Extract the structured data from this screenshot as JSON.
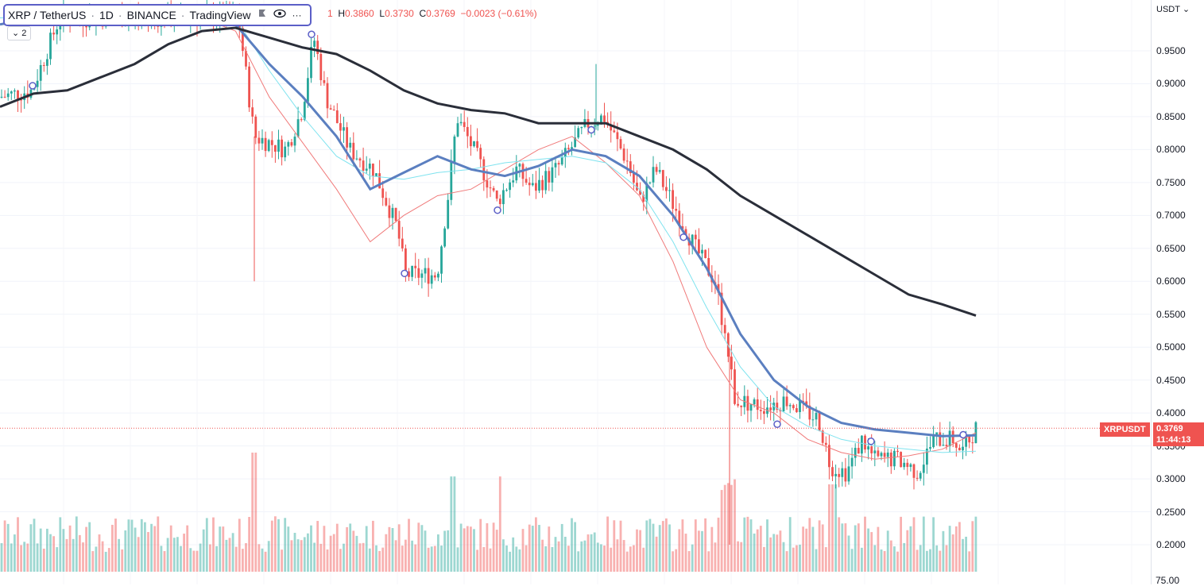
{
  "legend": {
    "symbol": "XRP / TetherUS",
    "interval": "1D",
    "exchange": "BINANCE",
    "source": "TradingView",
    "collapse_count": "2"
  },
  "ohlc": {
    "open_partial": "1",
    "h_label": "H",
    "h": "0.3860",
    "l_label": "L",
    "l": "0.3730",
    "c_label": "C",
    "c": "0.3769",
    "change": "−0.0023 (−0.61%)"
  },
  "price_axis": {
    "currency": "USDT",
    "ticks": [
      "0.9500",
      "0.9000",
      "0.8500",
      "0.8000",
      "0.7500",
      "0.7000",
      "0.6500",
      "0.6000",
      "0.5500",
      "0.5000",
      "0.4500",
      "0.4000",
      "0.3500",
      "0.3000",
      "0.2500",
      "0.2000"
    ],
    "bottom_label": "75.00"
  },
  "last_price": {
    "symbol": "XRPUSDT",
    "price": "0.3769",
    "countdown": "11:44:13"
  },
  "colors": {
    "up": "#26a69a",
    "down": "#ef5350",
    "ma_long": "#2a2e39",
    "ma_mid": "#5b7fc0",
    "ma_cyan": "#7fe3ef",
    "ma_short": "#f07a7a"
  },
  "chart_data": {
    "type": "candlestick",
    "ylim": [
      0.18,
      1.0
    ],
    "price_scale_ticks": [
      0.95,
      0.9,
      0.85,
      0.8,
      0.75,
      0.7,
      0.65,
      0.6,
      0.55,
      0.5,
      0.45,
      0.4,
      0.35,
      0.3,
      0.25,
      0.2
    ],
    "last_close": 0.3769,
    "ma_long_points": [
      0.865,
      0.885,
      0.89,
      0.91,
      0.93,
      0.96,
      0.98,
      0.985,
      0.97,
      0.955,
      0.945,
      0.92,
      0.89,
      0.87,
      0.86,
      0.855,
      0.84,
      0.84,
      0.84,
      0.82,
      0.8,
      0.77,
      0.73,
      0.7,
      0.67,
      0.64,
      0.61,
      0.58,
      0.565,
      0.548
    ],
    "ma_mid_points": [
      0.99,
      1.0,
      1.0,
      0.99,
      0.99,
      1.0,
      0.995,
      0.99,
      0.93,
      0.88,
      0.82,
      0.74,
      0.765,
      0.79,
      0.77,
      0.76,
      0.775,
      0.8,
      0.79,
      0.76,
      0.7,
      0.62,
      0.52,
      0.45,
      0.41,
      0.385,
      0.375,
      0.37,
      0.365,
      0.366
    ],
    "ma_cyan_points": [
      1.0,
      1.0,
      1.0,
      1.0,
      1.0,
      1.0,
      1.0,
      1.0,
      0.92,
      0.85,
      0.79,
      0.76,
      0.755,
      0.765,
      0.77,
      0.78,
      0.785,
      0.79,
      0.78,
      0.74,
      0.66,
      0.56,
      0.47,
      0.41,
      0.38,
      0.36,
      0.35,
      0.345,
      0.34,
      0.342
    ],
    "ma_short_points": [
      1.0,
      1.0,
      1.0,
      1.0,
      1.0,
      1.0,
      1.0,
      0.98,
      0.88,
      0.81,
      0.74,
      0.66,
      0.7,
      0.73,
      0.74,
      0.77,
      0.8,
      0.82,
      0.78,
      0.73,
      0.63,
      0.5,
      0.42,
      0.4,
      0.36,
      0.34,
      0.33,
      0.335,
      0.345,
      0.37
    ]
  }
}
